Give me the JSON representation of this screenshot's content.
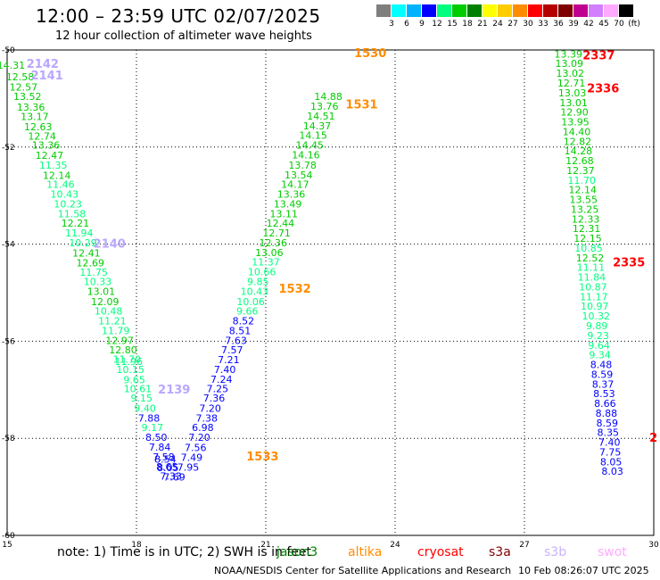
{
  "header": {
    "title": "12:00 – 23:59 UTC 02/07/2025",
    "subtitle": "12 hour collection of altimeter wave heights"
  },
  "colorbar": {
    "colors": [
      "#7f7f7f",
      "#00ffff",
      "#00b2ff",
      "#0000ff",
      "#00ff7f",
      "#00cc00",
      "#008000",
      "#ffff00",
      "#ffcc00",
      "#ff8c00",
      "#ff0000",
      "#b40000",
      "#7f0000",
      "#c00090",
      "#d27fff",
      "#ffaaff",
      "#000000"
    ],
    "labels": [
      "3",
      "6",
      "9",
      "12",
      "15",
      "18",
      "21",
      "24",
      "27",
      "30",
      "33",
      "36",
      "39",
      "42",
      "45",
      "70",
      "(ft)"
    ]
  },
  "notes": {
    "note_text": "note: 1) Time is in UTC; 2) SWH is in feet",
    "legend": [
      {
        "name": "jason3",
        "color": "#008000"
      },
      {
        "name": "altika",
        "color": "#ff8c00"
      },
      {
        "name": "cryosat",
        "color": "#ff0000"
      },
      {
        "name": "s3a",
        "color": "#7f0000"
      },
      {
        "name": "s3b",
        "color": "#c8b4ff"
      },
      {
        "name": "swot",
        "color": "#ffaaff"
      }
    ],
    "footer": "NOAA/NESDIS Center for Satellite Applications and Research",
    "footer_time": "10 Feb 08:26:07 UTC 2025"
  },
  "chart_data": {
    "type": "scatter",
    "xlim": [
      15,
      30
    ],
    "ylim": [
      -60,
      -50
    ],
    "xticks": [
      "15",
      "18",
      "21",
      "24",
      "27",
      "30"
    ],
    "yticks": [
      "-50",
      "-52",
      "-54",
      "-56",
      "-58",
      "-60"
    ],
    "grid": true,
    "series": [
      {
        "name": "s3b",
        "points": [
          {
            "x": 15.09,
            "y": -50.31,
            "v": "14.31"
          },
          {
            "x": 15.3,
            "y": -50.55,
            "v": "12.58"
          },
          {
            "x": 15.38,
            "y": -50.76,
            "v": "12.57"
          },
          {
            "x": 15.47,
            "y": -50.96,
            "v": "13.52"
          },
          {
            "x": 15.55,
            "y": -51.18,
            "v": "13.36"
          },
          {
            "x": 15.64,
            "y": -51.37,
            "v": "13.17"
          },
          {
            "x": 15.72,
            "y": -51.58,
            "v": "12.63"
          },
          {
            "x": 15.81,
            "y": -51.77,
            "v": "12.74"
          },
          {
            "x": 15.9,
            "y": -51.96,
            "v": "13.36"
          },
          {
            "x": 15.98,
            "y": -52.17,
            "v": "12.47"
          },
          {
            "x": 16.07,
            "y": -52.37,
            "v": "11.35"
          },
          {
            "x": 16.15,
            "y": -52.58,
            "v": "12.14"
          },
          {
            "x": 16.24,
            "y": -52.77,
            "v": "11.46"
          },
          {
            "x": 16.33,
            "y": -52.97,
            "v": "10.43"
          },
          {
            "x": 16.41,
            "y": -53.17,
            "v": "10.23"
          },
          {
            "x": 16.5,
            "y": -53.37,
            "v": "11.58"
          },
          {
            "x": 16.58,
            "y": -53.57,
            "v": "12.21"
          },
          {
            "x": 16.67,
            "y": -53.77,
            "v": "11.94"
          },
          {
            "x": 16.76,
            "y": -53.97,
            "v": "10.29"
          },
          {
            "x": 16.84,
            "y": -54.18,
            "v": "12.41"
          },
          {
            "x": 16.93,
            "y": -54.38,
            "v": "12.69"
          },
          {
            "x": 17.01,
            "y": -54.58,
            "v": "11.75"
          },
          {
            "x": 17.1,
            "y": -54.77,
            "v": "10.33"
          },
          {
            "x": 17.18,
            "y": -54.97,
            "v": "13.01"
          },
          {
            "x": 17.27,
            "y": -55.18,
            "v": "12.09"
          },
          {
            "x": 17.35,
            "y": -55.38,
            "v": "10.48"
          },
          {
            "x": 17.44,
            "y": -55.58,
            "v": "11.21"
          },
          {
            "x": 17.52,
            "y": -55.78,
            "v": "11.79"
          },
          {
            "x": 17.61,
            "y": -55.98,
            "v": "12.97"
          },
          {
            "x": 17.69,
            "y": -56.18,
            "v": "12.80"
          },
          {
            "x": 17.78,
            "y": -56.37,
            "v": "11.70"
          },
          {
            "x": 17.82,
            "y": -56.42,
            "v": "11.96"
          },
          {
            "x": 17.86,
            "y": -56.58,
            "v": "10.15"
          },
          {
            "x": 17.95,
            "y": -56.79,
            "v": "9.65"
          },
          {
            "x": 18.03,
            "y": -56.98,
            "v": "10.61"
          },
          {
            "x": 18.12,
            "y": -57.17,
            "v": "9.15"
          },
          {
            "x": 18.2,
            "y": -57.38,
            "v": "9.40"
          },
          {
            "x": 18.29,
            "y": -57.58,
            "v": "7.88"
          },
          {
            "x": 18.37,
            "y": -57.78,
            "v": "9.17"
          },
          {
            "x": 18.46,
            "y": -57.98,
            "v": "8.50"
          },
          {
            "x": 18.54,
            "y": -58.18,
            "v": "7.84"
          },
          {
            "x": 18.63,
            "y": -58.38,
            "v": "7.58"
          },
          {
            "x": 18.67,
            "y": -58.43,
            "v": "8.54"
          },
          {
            "x": 18.71,
            "y": -58.58,
            "v": "8.65"
          },
          {
            "x": 18.73,
            "y": -58.6,
            "v": "8.05"
          },
          {
            "x": 18.8,
            "y": -58.78,
            "v": "7.33"
          },
          {
            "x": 18.88,
            "y": -58.8,
            "v": "7.69"
          }
        ]
      },
      {
        "name": "jason3",
        "points": [
          {
            "x": 19.2,
            "y": -58.59,
            "v": "7.95"
          },
          {
            "x": 19.28,
            "y": -58.39,
            "v": "7.49"
          },
          {
            "x": 19.37,
            "y": -58.19,
            "v": "7.56"
          },
          {
            "x": 19.46,
            "y": -57.98,
            "v": "7.20"
          },
          {
            "x": 19.54,
            "y": -57.78,
            "v": "6.98"
          },
          {
            "x": 19.63,
            "y": -57.58,
            "v": "7.38"
          },
          {
            "x": 19.71,
            "y": -57.38,
            "v": "7.20"
          },
          {
            "x": 19.8,
            "y": -57.17,
            "v": "7.36"
          },
          {
            "x": 19.88,
            "y": -56.98,
            "v": "7.25"
          },
          {
            "x": 19.97,
            "y": -56.78,
            "v": "7.24"
          },
          {
            "x": 20.05,
            "y": -56.58,
            "v": "7.40"
          },
          {
            "x": 20.14,
            "y": -56.38,
            "v": "7.21"
          },
          {
            "x": 20.22,
            "y": -56.18,
            "v": "7.57"
          },
          {
            "x": 20.31,
            "y": -55.98,
            "v": "7.63"
          },
          {
            "x": 20.4,
            "y": -55.78,
            "v": "8.51"
          },
          {
            "x": 20.48,
            "y": -55.58,
            "v": "8.52"
          },
          {
            "x": 20.57,
            "y": -55.38,
            "v": "9.66"
          },
          {
            "x": 20.65,
            "y": -55.18,
            "v": "10.06"
          },
          {
            "x": 20.74,
            "y": -54.97,
            "v": "10.43"
          },
          {
            "x": 20.82,
            "y": -54.77,
            "v": "9.85"
          },
          {
            "x": 20.91,
            "y": -54.57,
            "v": "10.66"
          },
          {
            "x": 21.0,
            "y": -54.37,
            "v": "11.37"
          },
          {
            "x": 21.08,
            "y": -54.17,
            "v": "13.06"
          },
          {
            "x": 21.17,
            "y": -53.97,
            "v": "12.36"
          },
          {
            "x": 21.25,
            "y": -53.77,
            "v": "12.71"
          },
          {
            "x": 21.34,
            "y": -53.57,
            "v": "12.44"
          },
          {
            "x": 21.42,
            "y": -53.37,
            "v": "13.11"
          },
          {
            "x": 21.51,
            "y": -53.17,
            "v": "13.49"
          },
          {
            "x": 21.59,
            "y": -52.97,
            "v": "13.36"
          },
          {
            "x": 21.68,
            "y": -52.77,
            "v": "14.17"
          },
          {
            "x": 21.76,
            "y": -52.57,
            "v": "13.54"
          },
          {
            "x": 21.85,
            "y": -52.37,
            "v": "13.78"
          },
          {
            "x": 21.93,
            "y": -52.16,
            "v": "14.16"
          },
          {
            "x": 22.02,
            "y": -51.96,
            "v": "14.45"
          },
          {
            "x": 22.1,
            "y": -51.76,
            "v": "14.15"
          },
          {
            "x": 22.19,
            "y": -51.56,
            "v": "14.37"
          },
          {
            "x": 22.28,
            "y": -51.36,
            "v": "14.51"
          },
          {
            "x": 22.36,
            "y": -51.16,
            "v": "13.76"
          },
          {
            "x": 22.45,
            "y": -50.96,
            "v": "14.88"
          }
        ]
      },
      {
        "name": "s3a",
        "points": [
          {
            "x": 28.02,
            "y": -50.08,
            "v": "13.39"
          },
          {
            "x": 28.04,
            "y": -50.28,
            "v": "13.09"
          },
          {
            "x": 28.06,
            "y": -50.48,
            "v": "13.02"
          },
          {
            "x": 28.09,
            "y": -50.68,
            "v": "12.71"
          },
          {
            "x": 28.11,
            "y": -50.88,
            "v": "13.03"
          },
          {
            "x": 28.14,
            "y": -51.08,
            "v": "13.01"
          },
          {
            "x": 28.16,
            "y": -51.28,
            "v": "12.90"
          },
          {
            "x": 28.18,
            "y": -51.48,
            "v": "13.95"
          },
          {
            "x": 28.21,
            "y": -51.68,
            "v": "14.40"
          },
          {
            "x": 28.23,
            "y": -51.88,
            "v": "12.82"
          },
          {
            "x": 28.25,
            "y": -52.08,
            "v": "14.28"
          },
          {
            "x": 28.28,
            "y": -52.28,
            "v": "12.68"
          },
          {
            "x": 28.3,
            "y": -52.48,
            "v": "12.37"
          },
          {
            "x": 28.33,
            "y": -52.68,
            "v": "11.70"
          },
          {
            "x": 28.35,
            "y": -52.88,
            "v": "12.14"
          },
          {
            "x": 28.37,
            "y": -53.08,
            "v": "13.55"
          },
          {
            "x": 28.4,
            "y": -53.28,
            "v": "13.25"
          },
          {
            "x": 28.42,
            "y": -53.48,
            "v": "12.33"
          },
          {
            "x": 28.44,
            "y": -53.68,
            "v": "12.31"
          },
          {
            "x": 28.47,
            "y": -53.88,
            "v": "12.15"
          },
          {
            "x": 28.49,
            "y": -54.08,
            "v": "10.85"
          },
          {
            "x": 28.52,
            "y": -54.28,
            "v": "12.52"
          },
          {
            "x": 28.54,
            "y": -54.48,
            "v": "11.11"
          },
          {
            "x": 28.56,
            "y": -54.68,
            "v": "11.84"
          },
          {
            "x": 28.59,
            "y": -54.88,
            "v": "10.87"
          },
          {
            "x": 28.61,
            "y": -55.08,
            "v": "11.17"
          },
          {
            "x": 28.63,
            "y": -55.28,
            "v": "10.97"
          },
          {
            "x": 28.66,
            "y": -55.48,
            "v": "10.32"
          },
          {
            "x": 28.68,
            "y": -55.68,
            "v": "9.89"
          },
          {
            "x": 28.71,
            "y": -55.88,
            "v": "9.23"
          },
          {
            "x": 28.73,
            "y": -56.08,
            "v": "9.64"
          },
          {
            "x": 28.75,
            "y": -56.28,
            "v": "9.34"
          },
          {
            "x": 28.78,
            "y": -56.48,
            "v": "8.48"
          },
          {
            "x": 28.8,
            "y": -56.68,
            "v": "8.59"
          },
          {
            "x": 28.82,
            "y": -56.88,
            "v": "8.37"
          },
          {
            "x": 28.85,
            "y": -57.08,
            "v": "8.53"
          },
          {
            "x": 28.87,
            "y": -57.28,
            "v": "8.66"
          },
          {
            "x": 28.9,
            "y": -57.48,
            "v": "8.88"
          },
          {
            "x": 28.92,
            "y": -57.68,
            "v": "8.59"
          },
          {
            "x": 28.94,
            "y": -57.88,
            "v": "8.35"
          },
          {
            "x": 28.97,
            "y": -58.08,
            "v": "7.40"
          },
          {
            "x": 28.99,
            "y": -58.28,
            "v": "7.75"
          },
          {
            "x": 29.01,
            "y": -58.48,
            "v": "8.05"
          },
          {
            "x": 29.04,
            "y": -58.68,
            "v": "8.03"
          }
        ]
      }
    ],
    "pass_labels": [
      {
        "text": "2142",
        "x": 15.45,
        "y": -50.29,
        "color": "#b9a6ff"
      },
      {
        "text": "2141",
        "x": 15.55,
        "y": -50.53,
        "color": "#b9a6ff"
      },
      {
        "text": "2140",
        "x": 17.0,
        "y": -54.0,
        "color": "#b9a6ff"
      },
      {
        "text": "2139",
        "x": 18.5,
        "y": -57.0,
        "color": "#b9a6ff"
      },
      {
        "text": "1530",
        "x": 23.05,
        "y": -50.07,
        "color": "#ff8c00"
      },
      {
        "text": "1531",
        "x": 22.85,
        "y": -51.13,
        "color": "#ff8c00"
      },
      {
        "text": "1532",
        "x": 21.3,
        "y": -54.93,
        "color": "#ff8c00"
      },
      {
        "text": "1533",
        "x": 20.55,
        "y": -58.38,
        "color": "#ff8c00"
      },
      {
        "text": "2337",
        "x": 28.35,
        "y": -50.12,
        "color": "#ff0000"
      },
      {
        "text": "2336",
        "x": 28.45,
        "y": -50.8,
        "color": "#ff0000"
      },
      {
        "text": "2335",
        "x": 29.05,
        "y": -54.38,
        "color": "#ff0000"
      },
      {
        "text": "2",
        "x": 29.9,
        "y": -58.0,
        "color": "#ff0000"
      }
    ]
  }
}
